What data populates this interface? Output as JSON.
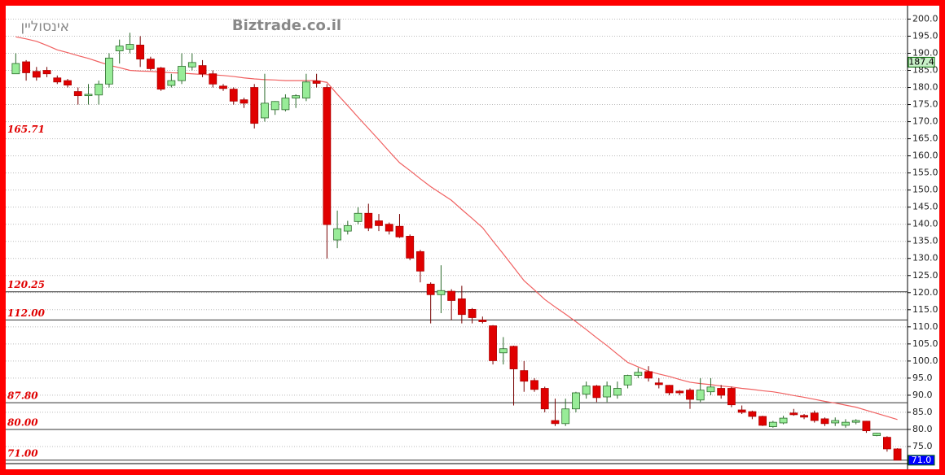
{
  "chart_data": {
    "type": "candlestick",
    "title": "Biztrade.co.il",
    "subtitle": "אינסוליין",
    "colors": {
      "up": "#98ec98",
      "down": "#e00000",
      "ma": "#f06060"
    },
    "ylim": [
      70,
      203.2
    ],
    "yticks": [
      {
        "value": 75,
        "label": "75.0"
      },
      {
        "value": 80,
        "label": "80.0"
      },
      {
        "value": 85,
        "label": "85.0"
      },
      {
        "value": 90,
        "label": "90.0"
      },
      {
        "value": 95,
        "label": "95.0"
      },
      {
        "value": 100,
        "label": "100.0"
      },
      {
        "value": 105,
        "label": "105.0"
      },
      {
        "value": 110,
        "label": "110.0"
      },
      {
        "value": 115,
        "label": "115.0"
      },
      {
        "value": 120,
        "label": "120.0"
      },
      {
        "value": 125,
        "label": "125.0"
      },
      {
        "value": 130,
        "label": "130.0"
      },
      {
        "value": 135,
        "label": "135.0"
      },
      {
        "value": 140,
        "label": "140.0"
      },
      {
        "value": 145,
        "label": "145.0"
      },
      {
        "value": 150,
        "label": "150.0"
      },
      {
        "value": 155,
        "label": "155.0"
      },
      {
        "value": 160,
        "label": "160.0"
      },
      {
        "value": 165,
        "label": "165.0"
      },
      {
        "value": 170,
        "label": "170.0"
      },
      {
        "value": 175,
        "label": "175.0"
      },
      {
        "value": 180,
        "label": "180.0"
      },
      {
        "value": 185,
        "label": "185.0"
      },
      {
        "value": 190,
        "label": "190.0"
      },
      {
        "value": 195,
        "label": "195.0"
      },
      {
        "value": 200,
        "label": "200.0"
      }
    ],
    "grid": true,
    "levels": [
      {
        "value": 165.71,
        "label": "165.71",
        "line": false
      },
      {
        "value": 120.25,
        "label": "120.25",
        "line": true
      },
      {
        "value": 112,
        "label": "112.00",
        "line": true
      },
      {
        "value": 87.8,
        "label": "87.80",
        "line": true
      },
      {
        "value": 80,
        "label": "80.00",
        "line": true
      },
      {
        "value": 71,
        "label": "71.00",
        "line": true
      }
    ],
    "price_markers": [
      {
        "value": 187.4,
        "label": "187.4",
        "color": "#c8f0c8",
        "text_color": "#000000"
      },
      {
        "value": 71,
        "label": "71.0",
        "color": "#0000ff",
        "text_color": "#ffffff"
      }
    ],
    "open": [
      184,
      187.5,
      184.7,
      185,
      182.8,
      182,
      178.8,
      177.6,
      177.8,
      181,
      190.7,
      191.2,
      192.4,
      188.3,
      185.7,
      180.6,
      182,
      186,
      186.4,
      184,
      180.4,
      179.5,
      176.4,
      180,
      171.1,
      173.5,
      173.5,
      176.9,
      176.9,
      181.9,
      180,
      135.4,
      138,
      140.8,
      143.2,
      141,
      140,
      139.4,
      136.5,
      132,
      122.5,
      119.4,
      120.4,
      118.2,
      115.1,
      112,
      110.3,
      102.4,
      104.3,
      97.2,
      94.3,
      92,
      82.6,
      81.7,
      86,
      90.3,
      92.7,
      89.5,
      90,
      93,
      95.8,
      96.9,
      93.6,
      92.9,
      91.2,
      91.5,
      88.6,
      91,
      92,
      92,
      85.7,
      85.2,
      83.8,
      80.8,
      81.9,
      84.8,
      84.1,
      84.8,
      83.1,
      81.9,
      81.2,
      82.1,
      82.4,
      78.2,
      77.7,
      74.3
    ],
    "high": [
      190,
      188,
      186,
      186,
      183.5,
      182.5,
      180,
      181,
      182,
      190,
      194,
      196,
      195,
      189,
      186,
      184,
      190,
      190,
      188,
      185,
      181,
      180,
      177,
      181,
      184,
      176,
      178,
      178,
      184,
      184,
      181,
      144,
      141,
      145,
      146,
      143,
      140.5,
      143,
      137,
      132.5,
      123,
      128,
      121,
      122,
      115.5,
      113,
      110.5,
      107,
      104.5,
      100,
      95,
      92.5,
      89,
      89,
      91,
      94,
      93,
      94,
      94,
      96,
      98,
      98.5,
      95,
      93,
      91.5,
      92,
      95,
      95,
      93,
      92.5,
      87,
      85.5,
      84,
      82.5,
      84,
      86,
      84.5,
      85.5,
      83.5,
      83.5,
      83,
      83,
      82.5,
      79,
      78,
      74.5
    ],
    "low": [
      184,
      182,
      182,
      183,
      181,
      180,
      175,
      175,
      175,
      180,
      187,
      190,
      186,
      185,
      179,
      180,
      181,
      185,
      183,
      180,
      179,
      175,
      174,
      168,
      170,
      172,
      173,
      174,
      176,
      180,
      130,
      133,
      137,
      140,
      138,
      138,
      137,
      136,
      129.5,
      123,
      111,
      114,
      112,
      111,
      111,
      111,
      99,
      99,
      87,
      91,
      91,
      85,
      81,
      81,
      85,
      89,
      88,
      88,
      89,
      92,
      95,
      94,
      92,
      90,
      90,
      86,
      88,
      90,
      89,
      86.5,
      84.5,
      83,
      81,
      80.5,
      81.5,
      84,
      83,
      82,
      81,
      81,
      80.5,
      81.5,
      79,
      78,
      73.5,
      71
    ],
    "close": [
      187,
      184.3,
      183,
      184,
      181.6,
      180.7,
      177.6,
      178,
      181,
      188.6,
      192.1,
      192.6,
      188.3,
      185.5,
      179.5,
      182,
      186.2,
      187.3,
      184,
      181,
      179.7,
      176,
      175.4,
      169.5,
      175.4,
      175.9,
      176.9,
      177.6,
      181.6,
      181.2,
      139.9,
      138.7,
      139.6,
      143.2,
      138.9,
      139.6,
      138,
      136.3,
      130.1,
      126.3,
      119.4,
      120.6,
      117.7,
      113.6,
      112.7,
      111.5,
      100.1,
      103.6,
      97.7,
      94.1,
      91.7,
      86,
      81.7,
      86,
      90.7,
      92.7,
      89.3,
      92.7,
      92,
      95.8,
      96.7,
      95,
      93.1,
      90.7,
      90.7,
      88.8,
      91.5,
      92.4,
      90,
      87.2,
      85,
      83.8,
      81.2,
      82.1,
      83.3,
      84.3,
      83.6,
      82.6,
      81.7,
      82.6,
      82.1,
      82.6,
      79.6,
      78.9,
      74.3,
      71
    ],
    "ma": [
      194.8,
      194.2,
      193.5,
      192.3,
      191,
      190.2,
      189.3,
      188.5,
      187.5,
      186.5,
      185.8,
      185,
      184.8,
      184.7,
      184.5,
      184.3,
      184.2,
      184,
      183.8,
      183.7,
      183.5,
      183.2,
      182.8,
      182.5,
      182.3,
      182.2,
      182,
      182,
      182,
      182,
      181.5,
      178,
      174.7,
      171.3,
      168,
      164.7,
      161.3,
      158,
      155.7,
      153.3,
      151,
      149,
      147,
      144.3,
      141.7,
      139,
      135.1,
      131.3,
      127.4,
      123.5,
      120.8,
      118,
      115.8,
      113.7,
      111.5,
      109.2,
      106.8,
      104.5,
      102,
      99.6,
      98.3,
      97,
      96.2,
      95.5,
      94.6,
      93.8,
      93.4,
      93.1,
      92.7,
      92.4,
      92,
      91.7,
      91.3,
      91,
      90.5,
      89.9,
      89.4,
      88.8,
      88.2,
      87.7,
      87.1,
      86.5,
      85.6,
      84.7,
      83.8,
      82.9
    ]
  }
}
